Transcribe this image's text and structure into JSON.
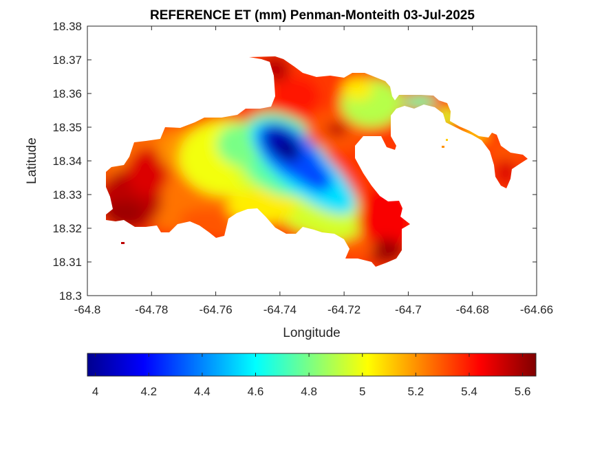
{
  "chart_data": {
    "type": "heatmap",
    "title": "REFERENCE ET (mm) Penman-Monteith 03-Jul-2025",
    "xlabel": "Longitude",
    "ylabel": "Latitude",
    "xlim": [
      -64.8,
      -64.66
    ],
    "ylim": [
      18.3,
      18.38
    ],
    "x_ticks": [
      "-64.8",
      "-64.78",
      "-64.76",
      "-64.74",
      "-64.72",
      "-64.7",
      "-64.68",
      "-64.66"
    ],
    "x_tick_values": [
      -64.8,
      -64.78,
      -64.76,
      -64.74,
      -64.72,
      -64.7,
      -64.68,
      -64.66
    ],
    "y_ticks": [
      "18.3",
      "18.31",
      "18.32",
      "18.33",
      "18.34",
      "18.35",
      "18.36",
      "18.37",
      "18.38"
    ],
    "y_tick_values": [
      18.3,
      18.31,
      18.32,
      18.33,
      18.34,
      18.35,
      18.36,
      18.37,
      18.38
    ],
    "colormap": "jet",
    "color_range": [
      3.97,
      5.65
    ],
    "colorbar_ticks": [
      "4",
      "4.2",
      "4.4",
      "4.6",
      "4.8",
      "5",
      "5.2",
      "5.4",
      "5.6"
    ],
    "colorbar_tick_values": [
      4.0,
      4.2,
      4.4,
      4.6,
      4.8,
      5.0,
      5.2,
      5.4,
      5.6
    ],
    "colorbar_location": "bottom",
    "grid": false,
    "approx_min": {
      "lon": -64.738,
      "lat": 18.344,
      "value": 3.98
    },
    "approx_max": {
      "lon": -64.79,
      "lat": 18.323,
      "value": 5.6
    }
  },
  "colors": {
    "axis": "#262626",
    "background": "#ffffff"
  }
}
